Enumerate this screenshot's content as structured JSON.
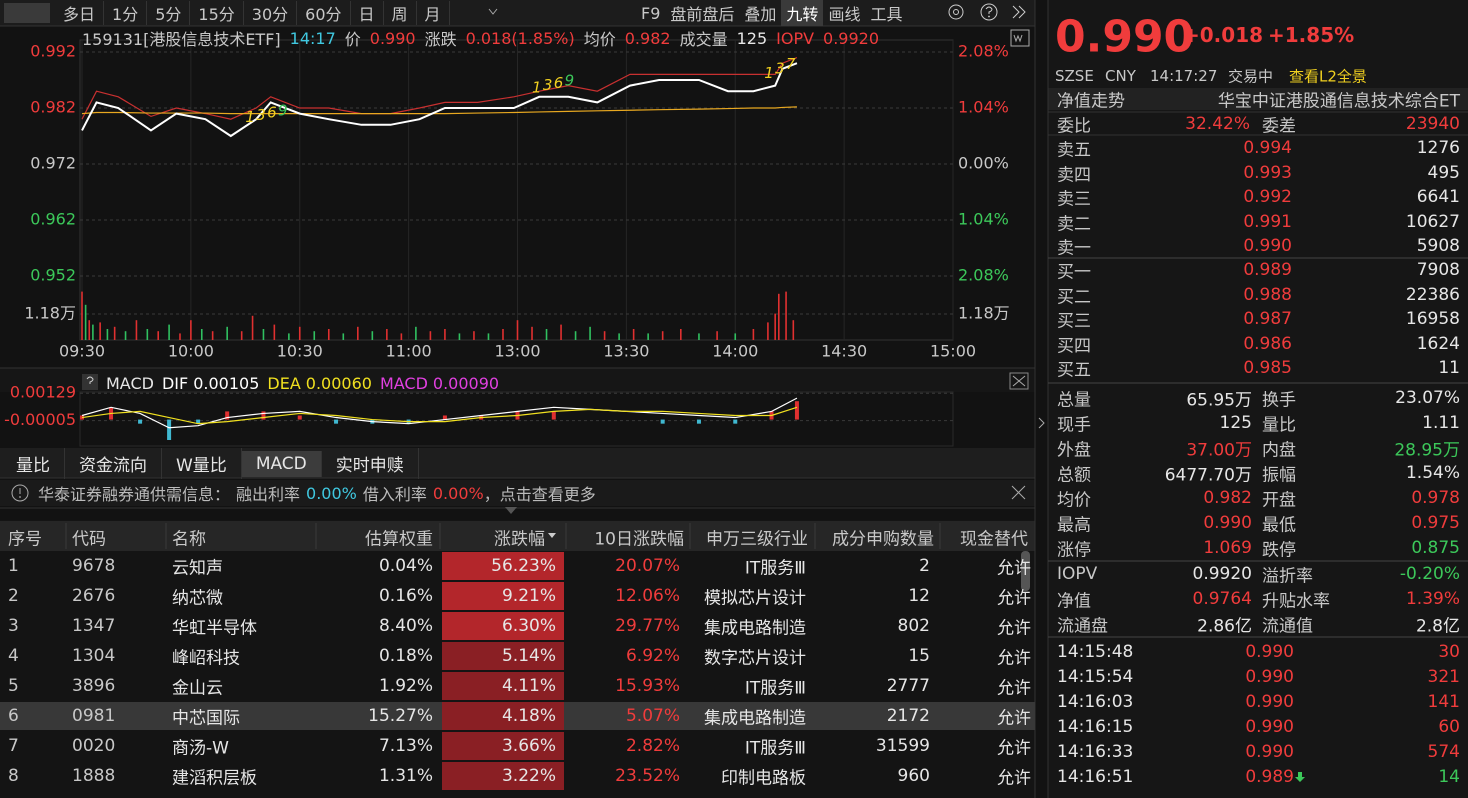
{
  "toolbar": {
    "left": [
      "多日",
      "1分",
      "5分",
      "15分",
      "30分",
      "60分",
      "日",
      "周",
      "月"
    ],
    "right": [
      "F9",
      "盘前盘后",
      "叠加",
      "九转",
      "画线",
      "工具"
    ],
    "active_right": 3
  },
  "quote_header": {
    "code_name": "159131[港股信息技术ETF]",
    "time": "14:17",
    "price": "0.990",
    "change_label": "涨跌",
    "change": "0.018(1.85%)",
    "avg": "0.982",
    "volume_label": "成交量",
    "volume": "125",
    "iopv": "0.9920"
  },
  "chart_data": [
    {
      "type": "line",
      "x": [
        0,
        4,
        10,
        19,
        26,
        34,
        41,
        48,
        52,
        60,
        68,
        77,
        85,
        93,
        100,
        109,
        119,
        126,
        134,
        142,
        151,
        159,
        170,
        178,
        185,
        191,
        193,
        197
      ],
      "series": [
        {
          "name": "价",
          "color": "#ffffff",
          "values": [
            0.978,
            0.983,
            0.982,
            0.978,
            0.981,
            0.98,
            0.977,
            0.98,
            0.983,
            0.981,
            0.98,
            0.979,
            0.979,
            0.98,
            0.982,
            0.982,
            0.982,
            0.984,
            0.984,
            0.983,
            0.986,
            0.987,
            0.987,
            0.985,
            0.985,
            0.986,
            0.989,
            0.99
          ]
        },
        {
          "name": "均价",
          "color": "#e8a820",
          "values": [
            0.981,
            0.9812,
            0.9812,
            0.9811,
            0.9811,
            0.9811,
            0.981,
            0.981,
            0.981,
            0.981,
            0.981,
            0.981,
            0.981,
            0.981,
            0.981,
            0.9811,
            0.9812,
            0.9813,
            0.9814,
            0.9815,
            0.9816,
            0.9817,
            0.9818,
            0.9819,
            0.982,
            0.982,
            0.9821,
            0.9822
          ]
        },
        {
          "name": "IOPV",
          "color": "#c83030",
          "values": [
            0.98,
            0.985,
            0.984,
            0.9805,
            0.982,
            0.981,
            0.98,
            0.982,
            0.984,
            0.982,
            0.982,
            0.981,
            0.981,
            0.982,
            0.983,
            0.983,
            0.984,
            0.985,
            0.986,
            0.985,
            0.988,
            0.988,
            0.988,
            0.988,
            0.988,
            0.988,
            0.99,
            0.991
          ]
        }
      ],
      "annotations": [
        {
          "text": "1",
          "x": 45,
          "y": 0.9803,
          "color": "#f0d020"
        },
        {
          "text": "3",
          "x": 48,
          "y": 0.9807,
          "color": "#f0d020"
        },
        {
          "text": "6",
          "x": 51,
          "y": 0.9811,
          "color": "#f0d020"
        },
        {
          "text": "9",
          "x": 54,
          "y": 0.9815,
          "color": "#3cc85a"
        },
        {
          "text": "1",
          "x": 124,
          "y": 0.9856,
          "color": "#f0d020"
        },
        {
          "text": "3",
          "x": 127,
          "y": 0.986,
          "color": "#f0d020"
        },
        {
          "text": "6",
          "x": 130,
          "y": 0.9864,
          "color": "#f0d020"
        },
        {
          "text": "9",
          "x": 133,
          "y": 0.9868,
          "color": "#3cc85a"
        },
        {
          "text": "1",
          "x": 188,
          "y": 0.9882,
          "color": "#f0d020"
        },
        {
          "text": "3",
          "x": 191,
          "y": 0.989,
          "color": "#f0d020"
        },
        {
          "text": "7",
          "x": 194,
          "y": 0.9898,
          "color": "#f0d020"
        }
      ],
      "xlim": [
        0,
        240
      ],
      "xticks": [
        {
          "value": 0,
          "label": "09:30"
        },
        {
          "value": 30,
          "label": "10:00"
        },
        {
          "value": 60,
          "label": "10:30"
        },
        {
          "value": 90,
          "label": "11:00"
        },
        {
          "value": 120,
          "label": "13:00"
        },
        {
          "value": 150,
          "label": "13:30"
        },
        {
          "value": 180,
          "label": "14:00"
        },
        {
          "value": 210,
          "label": "14:30"
        },
        {
          "value": 240,
          "label": "15:00"
        }
      ],
      "ylim": [
        0.952,
        0.992
      ],
      "yticks": [
        0.992,
        0.982,
        0.972,
        0.962,
        0.952
      ],
      "base_value": 0.972,
      "y2lim": [
        -2.08,
        2.08
      ],
      "y2ticks": [
        {
          "value": 2.08,
          "label": "2.08%"
        },
        {
          "value": 1.04,
          "label": "1.04%"
        },
        {
          "value": 0,
          "label": "0.00%"
        },
        {
          "value": -1.04,
          "label": "1.04%"
        },
        {
          "value": -2.08,
          "label": "2.08%"
        }
      ],
      "grid": true
    },
    {
      "type": "bar",
      "x": [
        0,
        1,
        2,
        3,
        5,
        7,
        9,
        12,
        15,
        18,
        21,
        24,
        27,
        30,
        33,
        36,
        40,
        44,
        47,
        50,
        53,
        57,
        60,
        64,
        68,
        72,
        76,
        80,
        84,
        88,
        92,
        96,
        100,
        104,
        108,
        112,
        116,
        120,
        124,
        128,
        132,
        136,
        140,
        144,
        148,
        152,
        156,
        160,
        165,
        170,
        175,
        180,
        185,
        189,
        191,
        192,
        194,
        196
      ],
      "values": [
        2.2,
        1.6,
        0.9,
        0.7,
        0.8,
        0.5,
        0.6,
        0.4,
        0.9,
        0.5,
        0.4,
        0.7,
        0.3,
        0.9,
        0.5,
        0.4,
        0.6,
        0.4,
        1.1,
        0.5,
        0.7,
        0.3,
        0.6,
        0.4,
        0.5,
        0.3,
        0.6,
        0.4,
        0.5,
        0.3,
        0.6,
        0.4,
        0.5,
        0.3,
        0.4,
        0.3,
        0.5,
        0.9,
        0.6,
        0.5,
        0.7,
        0.4,
        0.6,
        0.4,
        0.3,
        0.5,
        0.3,
        0.4,
        0.5,
        0.3,
        0.4,
        0.3,
        0.5,
        0.8,
        1.2,
        2.1,
        2.2,
        0.9
      ],
      "colors": [
        "#e03030",
        "#30c060",
        "#e03030",
        "#30c060",
        "#e03030",
        "#30c060",
        "#e03030",
        "#30c060",
        "#e03030",
        "#30c060",
        "#e03030",
        "#30c060",
        "#e03030",
        "#e03030",
        "#30c060",
        "#e03030",
        "#30c060",
        "#e03030",
        "#e03030",
        "#30c060",
        "#e03030",
        "#30c060",
        "#e03030",
        "#30c060",
        "#e03030",
        "#30c060",
        "#e03030",
        "#30c060",
        "#e03030",
        "#e03030",
        "#30c060",
        "#e03030",
        "#e03030",
        "#30c060",
        "#e03030",
        "#30c060",
        "#e03030",
        "#e03030",
        "#e03030",
        "#30c060",
        "#e03030",
        "#30c060",
        "#30c060",
        "#e03030",
        "#30c060",
        "#e03030",
        "#30c060",
        "#e03030",
        "#e03030",
        "#30c060",
        "#e03030",
        "#30c060",
        "#e03030",
        "#e03030",
        "#e03030",
        "#e03030",
        "#e03030",
        "#e03030"
      ],
      "xlim": [
        0,
        240
      ],
      "ylim": [
        0,
        2.5
      ],
      "yticks": [
        {
          "value": 1.18,
          "label": "1.18万"
        }
      ]
    },
    {
      "type": "macd",
      "title": "MACD",
      "x": [
        0,
        8,
        16,
        24,
        32,
        40,
        50,
        60,
        70,
        80,
        90,
        100,
        110,
        120,
        130,
        140,
        150,
        160,
        170,
        180,
        190,
        197
      ],
      "series": [
        {
          "name": "DIF",
          "color": "#ffffff",
          "values": [
            0.0002,
            0.0006,
            0.0003,
            -0.0004,
            -0.0003,
            0.0001,
            0.0003,
            0.0004,
            0.0001,
            -0.0001,
            -0.0002,
            0.0,
            0.0002,
            0.0004,
            0.0006,
            0.0005,
            0.0004,
            0.0003,
            0.0002,
            0.0001,
            0.0004,
            0.00105
          ],
          "value_label": "0.00105"
        },
        {
          "name": "DEA",
          "color": "#f0e020",
          "values": [
            0.0001,
            0.0003,
            0.0004,
            0.0001,
            -0.0002,
            -0.0001,
            0.0001,
            0.0003,
            0.0002,
            0.0,
            -0.0001,
            -0.0001,
            0.0001,
            0.0002,
            0.0004,
            0.0005,
            0.0004,
            0.0004,
            0.0003,
            0.0002,
            0.0002,
            0.0006
          ],
          "value_label": "0.00060"
        },
        {
          "name": "MACD",
          "color": "#e040e0",
          "values": [
            0.0002,
            0.0006,
            -0.0002,
            -0.001,
            -0.0002,
            0.0004,
            0.0004,
            0.0002,
            -0.0002,
            -0.0002,
            -0.0002,
            0.0002,
            0.0002,
            0.0004,
            0.0004,
            0.0,
            0.0,
            -0.0002,
            -0.0002,
            -0.0002,
            0.0004,
            0.0009
          ],
          "value_label": "0.00090"
        }
      ],
      "up_color": "#e03030",
      "down_color": "#40b8d0",
      "xlim": [
        0,
        240
      ],
      "ylim": [
        -0.001,
        0.00135
      ],
      "yticks": [
        0.00129,
        -5e-05
      ]
    }
  ],
  "tabs": [
    "量比",
    "资金流向",
    "W量比",
    "MACD",
    "实时申赎"
  ],
  "active_tab": 3,
  "notice": {
    "source": "华泰证券融券通供需信息：",
    "lend_label": "融出利率",
    "lend_rate": "0.00%",
    "borrow_label": "借入利率",
    "borrow_rate": "0.00%",
    "more": "，点击查看更多"
  },
  "table": {
    "columns": [
      "序号",
      "代码",
      "名称",
      "估算权重",
      "涨跌幅",
      "10日涨跌幅",
      "申万三级行业",
      "成分申购数量",
      "现金替代"
    ],
    "highlight_row": 5,
    "rows": [
      [
        "1",
        "9678",
        "云知声",
        "0.04%",
        "56.23%",
        "20.07%",
        "IT服务Ⅲ",
        "2",
        "允许"
      ],
      [
        "2",
        "2676",
        "纳芯微",
        "0.16%",
        "9.21%",
        "12.06%",
        "模拟芯片设计",
        "12",
        "允许"
      ],
      [
        "3",
        "1347",
        "华虹半导体",
        "8.40%",
        "6.30%",
        "29.77%",
        "集成电路制造",
        "802",
        "允许"
      ],
      [
        "4",
        "1304",
        "峰岹科技",
        "0.18%",
        "5.14%",
        "6.92%",
        "数字芯片设计",
        "15",
        "允许"
      ],
      [
        "5",
        "3896",
        "金山云",
        "1.92%",
        "4.11%",
        "15.93%",
        "IT服务Ⅲ",
        "2777",
        "允许"
      ],
      [
        "6",
        "0981",
        "中芯国际",
        "15.27%",
        "4.18%",
        "5.07%",
        "集成电路制造",
        "2172",
        "允许"
      ],
      [
        "7",
        "0020",
        "商汤-W",
        "7.13%",
        "3.66%",
        "2.82%",
        "IT服务Ⅲ",
        "31599",
        "允许"
      ],
      [
        "8",
        "1888",
        "建滔积层板",
        "1.31%",
        "3.22%",
        "23.52%",
        "印制电路板",
        "960",
        "允许"
      ]
    ]
  },
  "quote": {
    "price": "0.990",
    "change": "+0.018",
    "change_pct": "+1.85%",
    "exchange": "SZSE",
    "currency": "CNY",
    "time": "14:17:27",
    "status": "交易中",
    "l2_link": "查看L2全景",
    "nav_trend": "净值走势",
    "fund_name": "华宝中证港股通信息技术综合ET"
  },
  "order_book": {
    "ratio_label": "委比",
    "ratio": "32.42%",
    "diff_label": "委差",
    "diff": "23940",
    "asks": [
      [
        "卖五",
        "0.994",
        "1276"
      ],
      [
        "卖四",
        "0.993",
        "495"
      ],
      [
        "卖三",
        "0.992",
        "6641"
      ],
      [
        "卖二",
        "0.991",
        "10627"
      ],
      [
        "卖一",
        "0.990",
        "5908"
      ]
    ],
    "bids": [
      [
        "买一",
        "0.989",
        "7908"
      ],
      [
        "买二",
        "0.988",
        "22386"
      ],
      [
        "买三",
        "0.987",
        "16958"
      ],
      [
        "买四",
        "0.986",
        "1624"
      ],
      [
        "买五",
        "0.985",
        "11"
      ]
    ]
  },
  "stats": [
    [
      "总量",
      "65.95万",
      "换手",
      "23.07%"
    ],
    [
      "现手",
      "125",
      "量比",
      "1.11"
    ],
    [
      "外盘",
      "37.00万",
      "内盘",
      "28.95万"
    ],
    [
      "总额",
      "6477.70万",
      "振幅",
      "1.54%"
    ],
    [
      "均价",
      "0.982",
      "开盘",
      "0.978"
    ],
    [
      "最高",
      "0.990",
      "最低",
      "0.975"
    ],
    [
      "涨停",
      "1.069",
      "跌停",
      "0.875"
    ],
    [
      "IOPV",
      "0.9920",
      "溢折率",
      "-0.20%"
    ],
    [
      "净值",
      "0.9764",
      "升贴水率",
      "1.39%"
    ],
    [
      "流通盘",
      "2.86亿",
      "流通值",
      "2.8亿"
    ]
  ],
  "stats_colors": [
    [
      "white",
      "white"
    ],
    [
      "white",
      "white"
    ],
    [
      "red",
      "green"
    ],
    [
      "white",
      "white"
    ],
    [
      "red",
      "red"
    ],
    [
      "red",
      "red"
    ],
    [
      "red",
      "green"
    ],
    [
      "white",
      "green"
    ],
    [
      "red",
      "red"
    ],
    [
      "white",
      "white"
    ]
  ],
  "trades": [
    [
      "14:15:48",
      "0.990",
      "30"
    ],
    [
      "14:15:54",
      "0.990",
      "321"
    ],
    [
      "14:16:03",
      "0.990",
      "141"
    ],
    [
      "14:16:15",
      "0.990",
      "60"
    ],
    [
      "14:16:33",
      "0.990",
      "574"
    ],
    [
      "14:16:51",
      "0.989",
      "14"
    ]
  ],
  "trade_colors": [
    [
      "red",
      "red"
    ],
    [
      "red",
      "red"
    ],
    [
      "red",
      "red"
    ],
    [
      "red",
      "red"
    ],
    [
      "red",
      "red"
    ],
    [
      "red",
      "green"
    ]
  ],
  "trade_down_arrow": [
    false,
    false,
    false,
    false,
    false,
    true
  ]
}
